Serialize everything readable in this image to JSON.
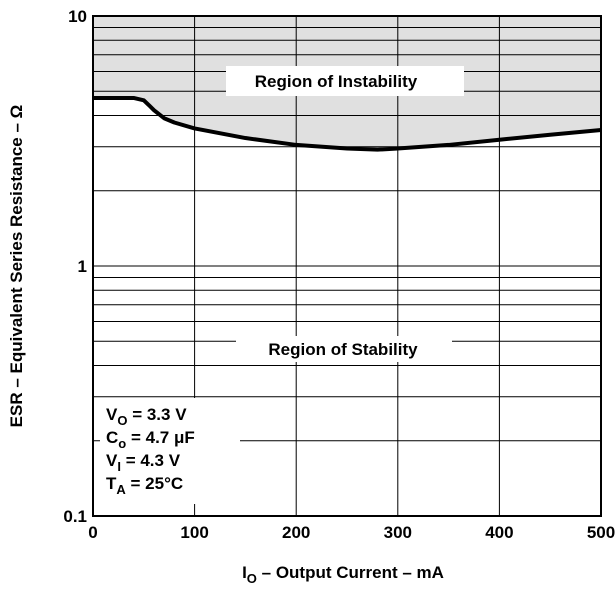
{
  "chart_data": {
    "type": "line",
    "xlabel": {
      "main": "I",
      "sub": "O",
      "rest": " – Output Current – mA"
    },
    "ylabel": "ESR – Equivalent Series Resistance – Ω",
    "x_scale": "linear",
    "y_scale": "log",
    "xlim": [
      0,
      500
    ],
    "ylim": [
      0.1,
      10
    ],
    "x_ticks": [
      "0",
      "100",
      "200",
      "300",
      "400",
      "500"
    ],
    "y_ticks": [
      "0.1",
      "1",
      "10"
    ],
    "grid": true,
    "series": [
      {
        "x": [
          0,
          40,
          50,
          55,
          60,
          70,
          80,
          100,
          150,
          200,
          250,
          280,
          300,
          350,
          400,
          450,
          500
        ],
        "y": [
          4.7,
          4.7,
          4.6,
          4.4,
          4.2,
          3.9,
          3.75,
          3.55,
          3.25,
          3.05,
          2.95,
          2.92,
          2.95,
          3.05,
          3.2,
          3.35,
          3.5
        ]
      }
    ],
    "annotations": {
      "unstable": "Region of Instability",
      "stable": "Region of Stability"
    },
    "conditions": [
      {
        "main": "V",
        "sub": "O",
        "rest": " = 3.3 V"
      },
      {
        "main": "C",
        "sub": "o",
        "rest": " = 4.7 μF"
      },
      {
        "main": "V",
        "sub": "I",
        "rest": " = 4.3 V"
      },
      {
        "main": "T",
        "sub": "A",
        "rest": " = 25°C"
      }
    ],
    "colors": {
      "line": "#000000",
      "instability_fill": "#e0e0e0",
      "grid": "#000000"
    }
  }
}
